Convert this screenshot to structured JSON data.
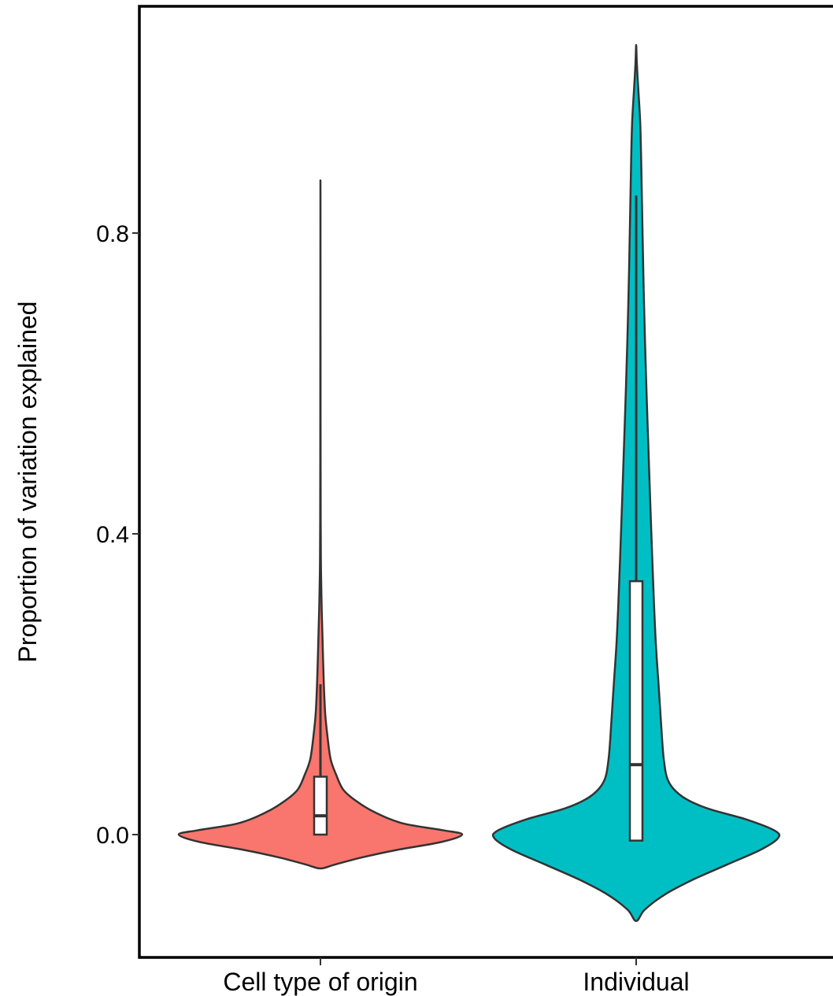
{
  "chart_data": {
    "type": "violin",
    "ylabel": "Proportion of variation explained",
    "xlabel": "",
    "ylim": [
      -0.125,
      1.0
    ],
    "yticks": [
      {
        "value": 0.0,
        "label": "0.0"
      },
      {
        "value": 0.4,
        "label": "0.4"
      },
      {
        "value": 0.8,
        "label": "0.8"
      }
    ],
    "grid": false,
    "categories": [
      "Cell type of origin",
      "Individual"
    ],
    "series": [
      {
        "category": "Cell type of origin",
        "color": "#F8766D",
        "box": {
          "lower": 0.0,
          "q1": 0.0,
          "median": 0.025,
          "q3": 0.077,
          "upper": 0.2
        },
        "violin_min": -0.045,
        "violin_max": 0.87,
        "density_profile": [
          [
            -0.045,
            0.0
          ],
          [
            -0.04,
            0.1
          ],
          [
            -0.03,
            0.3
          ],
          [
            -0.02,
            0.55
          ],
          [
            -0.01,
            0.85
          ],
          [
            0.0,
            1.0
          ],
          [
            0.006,
            0.86
          ],
          [
            0.015,
            0.58
          ],
          [
            0.03,
            0.38
          ],
          [
            0.045,
            0.25
          ],
          [
            0.06,
            0.16
          ],
          [
            0.08,
            0.11
          ],
          [
            0.1,
            0.072
          ],
          [
            0.13,
            0.05
          ],
          [
            0.16,
            0.034
          ],
          [
            0.2,
            0.024
          ],
          [
            0.25,
            0.016
          ],
          [
            0.3,
            0.009
          ],
          [
            0.35,
            0.004
          ],
          [
            0.4,
            0.002
          ],
          [
            0.5,
            0.001
          ],
          [
            0.87,
            0.0
          ]
        ]
      },
      {
        "category": "Individual",
        "color": "#00BFC4",
        "box": {
          "lower": -0.008,
          "q1": -0.008,
          "median": 0.093,
          "q3": 0.337,
          "upper": 0.85
        },
        "violin_min": -0.115,
        "violin_max": 1.05,
        "density_profile": [
          [
            -0.115,
            0.0
          ],
          [
            -0.1,
            0.06
          ],
          [
            -0.08,
            0.2
          ],
          [
            -0.06,
            0.4
          ],
          [
            -0.04,
            0.64
          ],
          [
            -0.02,
            0.88
          ],
          [
            -0.005,
            1.0
          ],
          [
            0.005,
            0.98
          ],
          [
            0.02,
            0.78
          ],
          [
            0.035,
            0.5
          ],
          [
            0.05,
            0.33
          ],
          [
            0.07,
            0.23
          ],
          [
            0.1,
            0.195
          ],
          [
            0.15,
            0.175
          ],
          [
            0.2,
            0.158
          ],
          [
            0.25,
            0.14
          ],
          [
            0.3,
            0.127
          ],
          [
            0.4,
            0.107
          ],
          [
            0.5,
            0.089
          ],
          [
            0.6,
            0.071
          ],
          [
            0.7,
            0.056
          ],
          [
            0.8,
            0.045
          ],
          [
            0.9,
            0.035
          ],
          [
            0.95,
            0.028
          ],
          [
            1.0,
            0.012
          ],
          [
            1.03,
            0.004
          ],
          [
            1.05,
            0.0
          ]
        ]
      }
    ]
  }
}
